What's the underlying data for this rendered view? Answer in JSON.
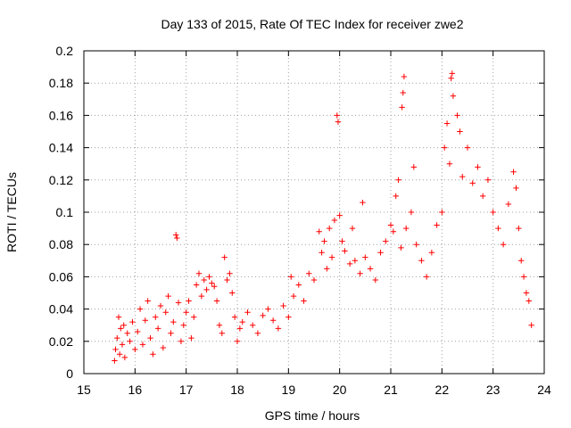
{
  "chart_data": {
    "type": "scatter",
    "title": "Day 133 of 2015, Rate Of TEC Index for receiver zwe2",
    "xlabel": "GPS time / hours",
    "ylabel": "ROTI / TECUs",
    "xlim": [
      15,
      24
    ],
    "ylim": [
      0,
      0.2
    ],
    "x_ticks": [
      "15",
      "16",
      "17",
      "18",
      "19",
      "20",
      "21",
      "22",
      "23",
      "24"
    ],
    "y_ticks": [
      "0",
      "0.02",
      "0.04",
      "0.06",
      "0.08",
      "0.1",
      "0.12",
      "0.14",
      "0.16",
      "0.18",
      "0.2"
    ],
    "grid": true,
    "marker": "plus",
    "color": "#ff0000",
    "series": [
      {
        "points": [
          [
            15.6,
            0.008
          ],
          [
            15.62,
            0.015
          ],
          [
            15.65,
            0.022
          ],
          [
            15.68,
            0.035
          ],
          [
            15.7,
            0.012
          ],
          [
            15.72,
            0.028
          ],
          [
            15.75,
            0.018
          ],
          [
            15.78,
            0.03
          ],
          [
            15.8,
            0.01
          ],
          [
            15.85,
            0.025
          ],
          [
            15.9,
            0.02
          ],
          [
            15.95,
            0.032
          ],
          [
            16.0,
            0.015
          ],
          [
            16.05,
            0.026
          ],
          [
            16.1,
            0.04
          ],
          [
            16.15,
            0.018
          ],
          [
            16.2,
            0.033
          ],
          [
            16.25,
            0.045
          ],
          [
            16.3,
            0.022
          ],
          [
            16.35,
            0.012
          ],
          [
            16.4,
            0.035
          ],
          [
            16.45,
            0.028
          ],
          [
            16.5,
            0.042
          ],
          [
            16.55,
            0.016
          ],
          [
            16.6,
            0.038
          ],
          [
            16.65,
            0.048
          ],
          [
            16.7,
            0.025
          ],
          [
            16.75,
            0.032
          ],
          [
            16.8,
            0.086
          ],
          [
            16.82,
            0.084
          ],
          [
            16.85,
            0.044
          ],
          [
            16.9,
            0.02
          ],
          [
            16.95,
            0.03
          ],
          [
            17.0,
            0.038
          ],
          [
            17.05,
            0.045
          ],
          [
            17.1,
            0.022
          ],
          [
            17.15,
            0.035
          ],
          [
            17.2,
            0.055
          ],
          [
            17.25,
            0.062
          ],
          [
            17.3,
            0.048
          ],
          [
            17.35,
            0.058
          ],
          [
            17.4,
            0.052
          ],
          [
            17.45,
            0.06
          ],
          [
            17.5,
            0.056
          ],
          [
            17.55,
            0.054
          ],
          [
            17.6,
            0.045
          ],
          [
            17.65,
            0.03
          ],
          [
            17.7,
            0.025
          ],
          [
            17.75,
            0.072
          ],
          [
            17.8,
            0.058
          ],
          [
            17.85,
            0.062
          ],
          [
            17.9,
            0.05
          ],
          [
            17.95,
            0.035
          ],
          [
            18.0,
            0.02
          ],
          [
            18.05,
            0.028
          ],
          [
            18.1,
            0.032
          ],
          [
            18.2,
            0.038
          ],
          [
            18.3,
            0.03
          ],
          [
            18.4,
            0.025
          ],
          [
            18.5,
            0.036
          ],
          [
            18.6,
            0.04
          ],
          [
            18.7,
            0.033
          ],
          [
            18.8,
            0.028
          ],
          [
            18.9,
            0.042
          ],
          [
            19.0,
            0.035
          ],
          [
            19.05,
            0.06
          ],
          [
            19.1,
            0.048
          ],
          [
            19.2,
            0.055
          ],
          [
            19.3,
            0.045
          ],
          [
            19.4,
            0.062
          ],
          [
            19.5,
            0.058
          ],
          [
            19.6,
            0.088
          ],
          [
            19.65,
            0.075
          ],
          [
            19.7,
            0.082
          ],
          [
            19.75,
            0.065
          ],
          [
            19.8,
            0.09
          ],
          [
            19.85,
            0.072
          ],
          [
            19.9,
            0.095
          ],
          [
            19.95,
            0.16
          ],
          [
            19.97,
            0.156
          ],
          [
            20.0,
            0.098
          ],
          [
            20.05,
            0.082
          ],
          [
            20.1,
            0.076
          ],
          [
            20.2,
            0.068
          ],
          [
            20.25,
            0.09
          ],
          [
            20.3,
            0.07
          ],
          [
            20.4,
            0.062
          ],
          [
            20.45,
            0.106
          ],
          [
            20.5,
            0.072
          ],
          [
            20.6,
            0.065
          ],
          [
            20.7,
            0.058
          ],
          [
            20.8,
            0.075
          ],
          [
            20.9,
            0.082
          ],
          [
            21.0,
            0.092
          ],
          [
            21.05,
            0.088
          ],
          [
            21.1,
            0.11
          ],
          [
            21.15,
            0.12
          ],
          [
            21.2,
            0.078
          ],
          [
            21.22,
            0.165
          ],
          [
            21.24,
            0.174
          ],
          [
            21.26,
            0.184
          ],
          [
            21.3,
            0.09
          ],
          [
            21.4,
            0.1
          ],
          [
            21.45,
            0.128
          ],
          [
            21.5,
            0.08
          ],
          [
            21.6,
            0.07
          ],
          [
            21.7,
            0.06
          ],
          [
            21.8,
            0.075
          ],
          [
            21.9,
            0.092
          ],
          [
            22.0,
            0.1
          ],
          [
            22.05,
            0.14
          ],
          [
            22.1,
            0.155
          ],
          [
            22.15,
            0.13
          ],
          [
            22.18,
            0.183
          ],
          [
            22.2,
            0.186
          ],
          [
            22.22,
            0.172
          ],
          [
            22.3,
            0.16
          ],
          [
            22.35,
            0.15
          ],
          [
            22.4,
            0.122
          ],
          [
            22.5,
            0.14
          ],
          [
            22.6,
            0.118
          ],
          [
            22.7,
            0.128
          ],
          [
            22.8,
            0.11
          ],
          [
            22.9,
            0.12
          ],
          [
            23.0,
            0.1
          ],
          [
            23.1,
            0.09
          ],
          [
            23.2,
            0.08
          ],
          [
            23.3,
            0.105
          ],
          [
            23.4,
            0.125
          ],
          [
            23.45,
            0.115
          ],
          [
            23.5,
            0.09
          ],
          [
            23.55,
            0.07
          ],
          [
            23.6,
            0.06
          ],
          [
            23.65,
            0.05
          ],
          [
            23.7,
            0.045
          ],
          [
            23.75,
            0.03
          ]
        ]
      }
    ]
  }
}
